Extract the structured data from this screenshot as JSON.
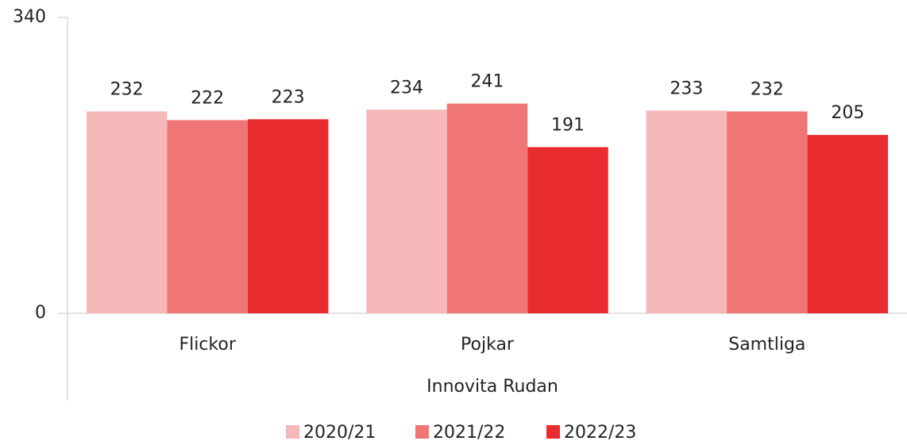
{
  "chart_data": {
    "type": "bar",
    "categories": [
      "Flickor",
      "Pojkar",
      "Samtliga"
    ],
    "x_label": "Innovita Rudan",
    "series": [
      {
        "name": "2020/21",
        "color": "#f7b8b9",
        "values": [
          232,
          234,
          233
        ]
      },
      {
        "name": "2021/22",
        "color": "#f07575",
        "values": [
          222,
          241,
          232
        ]
      },
      {
        "name": "2022/23",
        "color": "#e82c30",
        "values": [
          223,
          191,
          205
        ]
      }
    ],
    "ylim": [
      0,
      340
    ],
    "yticks": [
      0,
      340
    ],
    "legend": "bottom"
  }
}
